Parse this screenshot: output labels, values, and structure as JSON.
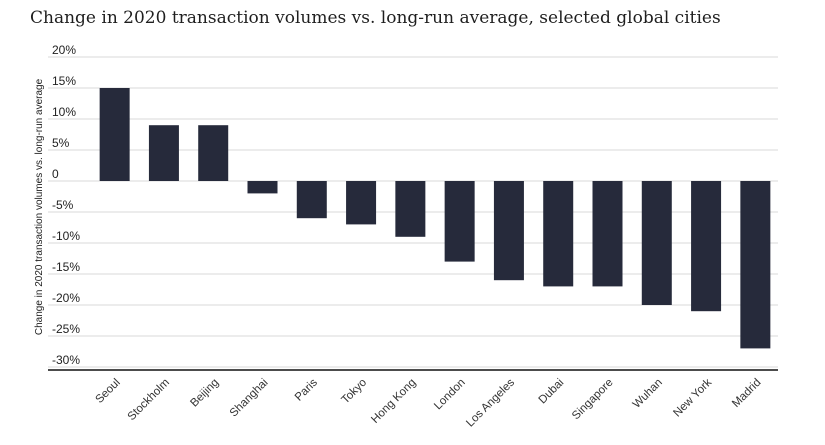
{
  "chart_data": {
    "type": "bar",
    "title": "Change in 2020 transaction volumes vs. long-run average, selected global cities",
    "xlabel": "",
    "ylabel": "Change in 2020 transaction volumes vs. long-run average",
    "ylim": [
      -30,
      20
    ],
    "y_ticks": [
      20,
      15,
      10,
      5,
      0,
      -5,
      -10,
      -15,
      -20,
      -25,
      -30
    ],
    "y_tick_labels": [
      "20%",
      "15%",
      "10%",
      "5%",
      "0",
      "-5%",
      "-10%",
      "-15%",
      "-20%",
      "-25%",
      "-30%"
    ],
    "grid": true,
    "categories": [
      "Seoul",
      "Stockholm",
      "Beijing",
      "Shanghai",
      "Paris",
      "Tokyo",
      "Hong Kong",
      "London",
      "Los Angeles",
      "Dubai",
      "Singapore",
      "Wuhan",
      "New York",
      "Madrid"
    ],
    "values": [
      15,
      9,
      9,
      -2,
      -6,
      -7,
      -9,
      -13,
      -16,
      -17,
      -17,
      -20,
      -21,
      -27
    ],
    "bar_color": "#262a3b"
  }
}
